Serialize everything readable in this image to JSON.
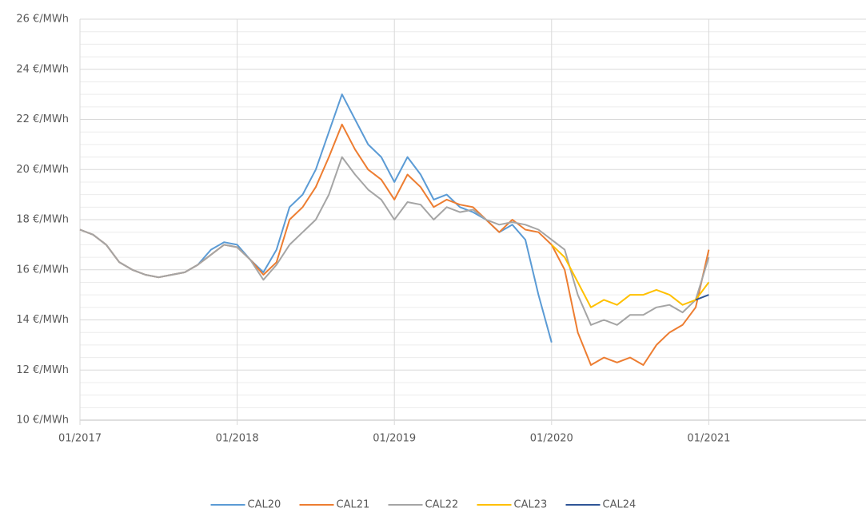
{
  "chart_data": {
    "type": "line",
    "x": [
      "2017-01",
      "2017-02",
      "2017-03",
      "2017-04",
      "2017-05",
      "2017-06",
      "2017-07",
      "2017-08",
      "2017-09",
      "2017-10",
      "2017-11",
      "2017-12",
      "2018-01",
      "2018-02",
      "2018-03",
      "2018-04",
      "2018-05",
      "2018-06",
      "2018-07",
      "2018-08",
      "2018-09",
      "2018-10",
      "2018-11",
      "2018-12",
      "2019-01",
      "2019-02",
      "2019-03",
      "2019-04",
      "2019-05",
      "2019-06",
      "2019-07",
      "2019-08",
      "2019-09",
      "2019-10",
      "2019-11",
      "2019-12",
      "2020-01",
      "2020-02",
      "2020-03",
      "2020-04",
      "2020-05",
      "2020-06",
      "2020-07",
      "2020-08",
      "2020-09",
      "2020-10",
      "2020-11",
      "2020-12",
      "2021-01"
    ],
    "series": [
      {
        "name": "CAL20",
        "color": "#5b9bd5",
        "values": [
          17.6,
          17.4,
          17.0,
          16.3,
          16.0,
          15.8,
          15.7,
          15.8,
          15.9,
          16.2,
          16.8,
          17.1,
          17.0,
          16.4,
          15.9,
          16.8,
          18.5,
          19.0,
          20.0,
          21.5,
          23.0,
          22.0,
          21.0,
          20.5,
          19.5,
          20.5,
          19.8,
          18.8,
          19.0,
          18.5,
          18.3,
          18.0,
          17.5,
          17.8,
          17.2,
          15.0,
          13.1,
          null,
          null,
          null,
          null,
          null,
          null,
          null,
          null,
          null,
          null,
          null,
          null
        ]
      },
      {
        "name": "CAL21",
        "color": "#ed7d31",
        "values": [
          17.6,
          17.4,
          17.0,
          16.3,
          16.0,
          15.8,
          15.7,
          15.8,
          15.9,
          16.2,
          16.6,
          17.0,
          16.9,
          16.4,
          15.8,
          16.3,
          18.0,
          18.5,
          19.3,
          20.5,
          21.8,
          20.8,
          20.0,
          19.6,
          18.8,
          19.8,
          19.3,
          18.5,
          18.8,
          18.6,
          18.5,
          18.0,
          17.5,
          18.0,
          17.6,
          17.5,
          17.0,
          16.0,
          13.5,
          12.2,
          12.5,
          12.3,
          12.5,
          12.2,
          13.0,
          13.5,
          13.8,
          14.5,
          16.8
        ]
      },
      {
        "name": "CAL22",
        "color": "#a5a5a5",
        "values": [
          17.6,
          17.4,
          17.0,
          16.3,
          16.0,
          15.8,
          15.7,
          15.8,
          15.9,
          16.2,
          16.6,
          17.0,
          16.9,
          16.4,
          15.6,
          16.2,
          17.0,
          17.5,
          18.0,
          19.0,
          20.5,
          19.8,
          19.2,
          18.8,
          18.0,
          18.7,
          18.6,
          18.0,
          18.5,
          18.3,
          18.4,
          18.0,
          17.8,
          17.9,
          17.8,
          17.6,
          17.2,
          16.8,
          15.0,
          13.8,
          14.0,
          13.8,
          14.2,
          14.2,
          14.5,
          14.6,
          14.3,
          14.8,
          16.5
        ]
      },
      {
        "name": "CAL23",
        "color": "#ffc000",
        "values": [
          null,
          null,
          null,
          null,
          null,
          null,
          null,
          null,
          null,
          null,
          null,
          null,
          null,
          null,
          null,
          null,
          null,
          null,
          null,
          null,
          null,
          null,
          null,
          null,
          null,
          null,
          null,
          null,
          null,
          null,
          null,
          null,
          null,
          null,
          null,
          null,
          17.0,
          16.5,
          15.5,
          14.5,
          14.8,
          14.6,
          15.0,
          15.0,
          15.2,
          15.0,
          14.6,
          14.8,
          15.5
        ]
      },
      {
        "name": "CAL24",
        "color": "#2f5597",
        "values": [
          null,
          null,
          null,
          null,
          null,
          null,
          null,
          null,
          null,
          null,
          null,
          null,
          null,
          null,
          null,
          null,
          null,
          null,
          null,
          null,
          null,
          null,
          null,
          null,
          null,
          null,
          null,
          null,
          null,
          null,
          null,
          null,
          null,
          null,
          null,
          null,
          null,
          null,
          null,
          null,
          null,
          null,
          null,
          null,
          null,
          null,
          null,
          14.8,
          15.0
        ]
      }
    ],
    "xlim": [
      "2017-01",
      "2021-12"
    ],
    "xticks": [
      {
        "value": "2017-01",
        "label": "01/2017"
      },
      {
        "value": "2018-01",
        "label": "01/2018"
      },
      {
        "value": "2019-01",
        "label": "01/2019"
      },
      {
        "value": "2020-01",
        "label": "01/2020"
      },
      {
        "value": "2021-01",
        "label": "01/2021"
      }
    ],
    "ylim": [
      10,
      26
    ],
    "yticks": [
      {
        "value": 10,
        "label": "10 €/MWh"
      },
      {
        "value": 12,
        "label": "12 €/MWh"
      },
      {
        "value": 14,
        "label": "14 €/MWh"
      },
      {
        "value": 16,
        "label": "16 €/MWh"
      },
      {
        "value": 18,
        "label": "18 €/MWh"
      },
      {
        "value": 20,
        "label": "20 €/MWh"
      },
      {
        "value": 22,
        "label": "22 €/MWh"
      },
      {
        "value": 24,
        "label": "24 €/MWh"
      },
      {
        "value": 26,
        "label": "26 €/MWh"
      }
    ],
    "minor_yticks": [
      10.5,
      11,
      11.5,
      12.5,
      13,
      13.5,
      14.5,
      15,
      15.5,
      16.5,
      17,
      17.5,
      18.5,
      19,
      19.5,
      20.5,
      21,
      21.5,
      22.5,
      23,
      23.5,
      24.5,
      25,
      25.5
    ],
    "grid": true,
    "legend": "bottom"
  }
}
